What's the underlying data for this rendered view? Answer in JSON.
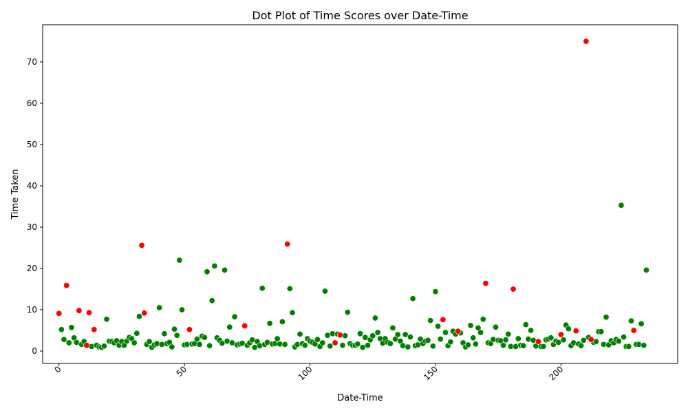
{
  "chart_data": {
    "type": "scatter",
    "title": "Dot Plot of Time Scores over Date-Time",
    "xlabel": "Date-Time",
    "ylabel": "Time Taken",
    "xlim": [
      -6.5,
      246.5
    ],
    "ylim": [
      -3.0,
      79.0
    ],
    "x_ticks": [
      0,
      50,
      100,
      150,
      200
    ],
    "y_ticks": [
      0,
      10,
      20,
      30,
      40,
      50,
      60,
      70
    ],
    "x_tick_labels": [
      "0",
      "50",
      "100",
      "150",
      "200"
    ],
    "y_tick_labels": [
      "0",
      "10",
      "20",
      "30",
      "40",
      "50",
      "60",
      "70"
    ],
    "x_tick_rotation_deg": 45,
    "grid": false,
    "legend": "none",
    "colors": {
      "normal": "#008000",
      "highlight": "#ff0000",
      "marker_edge": "#ffffff"
    },
    "series": [
      {
        "color": "green",
        "points": [
          [
            1,
            5.2
          ],
          [
            2,
            2.8
          ],
          [
            4,
            2
          ],
          [
            5,
            5.7
          ],
          [
            6,
            3.2
          ],
          [
            7,
            2.1
          ],
          [
            9,
            1.6
          ],
          [
            10,
            2.3
          ],
          [
            13,
            1.1
          ],
          [
            15,
            1.4
          ],
          [
            16,
            1
          ],
          [
            17,
            0.9
          ],
          [
            18,
            1.2
          ],
          [
            19,
            7.7
          ],
          [
            20,
            2.4
          ],
          [
            21,
            2.3
          ],
          [
            22,
            2
          ],
          [
            23,
            2.5
          ],
          [
            24,
            1.4
          ],
          [
            25,
            2.3
          ],
          [
            26,
            1.4
          ],
          [
            27,
            2.4
          ],
          [
            28,
            3.3
          ],
          [
            29,
            3
          ],
          [
            30,
            2
          ],
          [
            31,
            4.3
          ],
          [
            32,
            8.4
          ],
          [
            35,
            1.6
          ],
          [
            36,
            2.3
          ],
          [
            37,
            0.9
          ],
          [
            38,
            1.5
          ],
          [
            39,
            1.8
          ],
          [
            40,
            10.5
          ],
          [
            41,
            1.6
          ],
          [
            42,
            4.2
          ],
          [
            43,
            1.8
          ],
          [
            44,
            2.1
          ],
          [
            45,
            1
          ],
          [
            46,
            5.3
          ],
          [
            47,
            3.8
          ],
          [
            48,
            22
          ],
          [
            49,
            10
          ],
          [
            50,
            1.5
          ],
          [
            51,
            1.6
          ],
          [
            53,
            1.7
          ],
          [
            54,
            1.8
          ],
          [
            55,
            2.9
          ],
          [
            56,
            1.6
          ],
          [
            57,
            3.6
          ],
          [
            58,
            3.3
          ],
          [
            59,
            19.2
          ],
          [
            60,
            1.3
          ],
          [
            61,
            12.2
          ],
          [
            62,
            20.6
          ],
          [
            63,
            3.2
          ],
          [
            64,
            2.6
          ],
          [
            65,
            1.9
          ],
          [
            66,
            19.6
          ],
          [
            67,
            2.4
          ],
          [
            68,
            5.8
          ],
          [
            69,
            2
          ],
          [
            70,
            8.3
          ],
          [
            71,
            1.5
          ],
          [
            72,
            1.7
          ],
          [
            73,
            1.9
          ],
          [
            75,
            1.4
          ],
          [
            76,
            2
          ],
          [
            77,
            2.7
          ],
          [
            78,
            0.9
          ],
          [
            79,
            2.3
          ],
          [
            80,
            1.3
          ],
          [
            81,
            15.2
          ],
          [
            82,
            1.6
          ],
          [
            83,
            2.1
          ],
          [
            84,
            6.7
          ],
          [
            85,
            1.7
          ],
          [
            86,
            1.8
          ],
          [
            87,
            3
          ],
          [
            88,
            1.7
          ],
          [
            89,
            7.1
          ],
          [
            90,
            1.6
          ],
          [
            92,
            15.1
          ],
          [
            93,
            9.3
          ],
          [
            94,
            1
          ],
          [
            95,
            1.6
          ],
          [
            96,
            4.1
          ],
          [
            97,
            1.8
          ],
          [
            98,
            1.4
          ],
          [
            99,
            3
          ],
          [
            100,
            2.4
          ],
          [
            101,
            2.1
          ],
          [
            102,
            1.7
          ],
          [
            103,
            2.8
          ],
          [
            104,
            1.1
          ],
          [
            105,
            2
          ],
          [
            106,
            14.5
          ],
          [
            107,
            3.8
          ],
          [
            108,
            1.2
          ],
          [
            109,
            4.2
          ],
          [
            111,
            4.1
          ],
          [
            113,
            1.4
          ],
          [
            114,
            3.7
          ],
          [
            115,
            9.4
          ],
          [
            116,
            1.8
          ],
          [
            117,
            1.4
          ],
          [
            118,
            1.4
          ],
          [
            119,
            1.7
          ],
          [
            120,
            4.2
          ],
          [
            121,
            0.9
          ],
          [
            122,
            3.3
          ],
          [
            123,
            1.4
          ],
          [
            124,
            2.7
          ],
          [
            125,
            3.7
          ],
          [
            126,
            8
          ],
          [
            127,
            4.5
          ],
          [
            128,
            3
          ],
          [
            129,
            1.9
          ],
          [
            130,
            3
          ],
          [
            131,
            2.1
          ],
          [
            132,
            1.8
          ],
          [
            133,
            5.6
          ],
          [
            134,
            2.9
          ],
          [
            135,
            4
          ],
          [
            136,
            2.4
          ],
          [
            137,
            1.3
          ],
          [
            138,
            4
          ],
          [
            139,
            1
          ],
          [
            140,
            3.4
          ],
          [
            141,
            12.7
          ],
          [
            142,
            1.3
          ],
          [
            143,
            1.5
          ],
          [
            144,
            2.9
          ],
          [
            145,
            1.8
          ],
          [
            146,
            2.4
          ],
          [
            147,
            2.6
          ],
          [
            148,
            7.4
          ],
          [
            149,
            1.2
          ],
          [
            150,
            14.4
          ],
          [
            151,
            6
          ],
          [
            152,
            2.9
          ],
          [
            154,
            4.5
          ],
          [
            155,
            1.3
          ],
          [
            156,
            2.2
          ],
          [
            157,
            4.8
          ],
          [
            158,
            4.1
          ],
          [
            160,
            4.4
          ],
          [
            161,
            2
          ],
          [
            162,
            1
          ],
          [
            163,
            1.5
          ],
          [
            164,
            6.2
          ],
          [
            165,
            3.2
          ],
          [
            166,
            1.7
          ],
          [
            167,
            5.6
          ],
          [
            168,
            4.5
          ],
          [
            169,
            7.7
          ],
          [
            171,
            2
          ],
          [
            172,
            1.8
          ],
          [
            173,
            2.8
          ],
          [
            174,
            5.8
          ],
          [
            175,
            2.6
          ],
          [
            176,
            2.5
          ],
          [
            177,
            1.4
          ],
          [
            178,
            2.7
          ],
          [
            179,
            4.1
          ],
          [
            180,
            1.1
          ],
          [
            182,
            1.1
          ],
          [
            183,
            3
          ],
          [
            184,
            1.4
          ],
          [
            185,
            1.3
          ],
          [
            186,
            6.4
          ],
          [
            187,
            2.9
          ],
          [
            188,
            5
          ],
          [
            189,
            2.6
          ],
          [
            190,
            1.2
          ],
          [
            192,
            1.1
          ],
          [
            193,
            1.1
          ],
          [
            194,
            2.7
          ],
          [
            195,
            2.9
          ],
          [
            196,
            3.2
          ],
          [
            197,
            1.6
          ],
          [
            198,
            2.4
          ],
          [
            199,
            2.1
          ],
          [
            201,
            2.7
          ],
          [
            202,
            6.3
          ],
          [
            203,
            5.4
          ],
          [
            204,
            1.3
          ],
          [
            205,
            2
          ],
          [
            207,
            1.7
          ],
          [
            208,
            1.3
          ],
          [
            209,
            2.6
          ],
          [
            211,
            3.3
          ],
          [
            213,
            2.1
          ],
          [
            214,
            2.3
          ],
          [
            215,
            4.7
          ],
          [
            216,
            4.7
          ],
          [
            217,
            1.6
          ],
          [
            218,
            8.2
          ],
          [
            219,
            1.5
          ],
          [
            220,
            2.5
          ],
          [
            221,
            2
          ],
          [
            222,
            2.8
          ],
          [
            223,
            2.4
          ],
          [
            224,
            35.3
          ],
          [
            225,
            3.4
          ],
          [
            226,
            1.1
          ],
          [
            227,
            1.1
          ],
          [
            228,
            7.3
          ],
          [
            230,
            1.6
          ],
          [
            231,
            1.6
          ],
          [
            232,
            6.6
          ],
          [
            233,
            1.4
          ],
          [
            234,
            19.6
          ]
        ]
      },
      {
        "color": "red",
        "points": [
          [
            0,
            9.1
          ],
          [
            3,
            15.9
          ],
          [
            8,
            9.8
          ],
          [
            11,
            1.4
          ],
          [
            12,
            9.3
          ],
          [
            14,
            5.2
          ],
          [
            33,
            25.6
          ],
          [
            34,
            9.2
          ],
          [
            52,
            5.2
          ],
          [
            74,
            6.1
          ],
          [
            91,
            25.9
          ],
          [
            110,
            2
          ],
          [
            112,
            3.9
          ],
          [
            153,
            7.6
          ],
          [
            159,
            4.8
          ],
          [
            170,
            16.4
          ],
          [
            181,
            15
          ],
          [
            191,
            2.3
          ],
          [
            200,
            4
          ],
          [
            206,
            4.9
          ],
          [
            210,
            75
          ],
          [
            212,
            2.8
          ],
          [
            229,
            5
          ]
        ]
      }
    ]
  }
}
